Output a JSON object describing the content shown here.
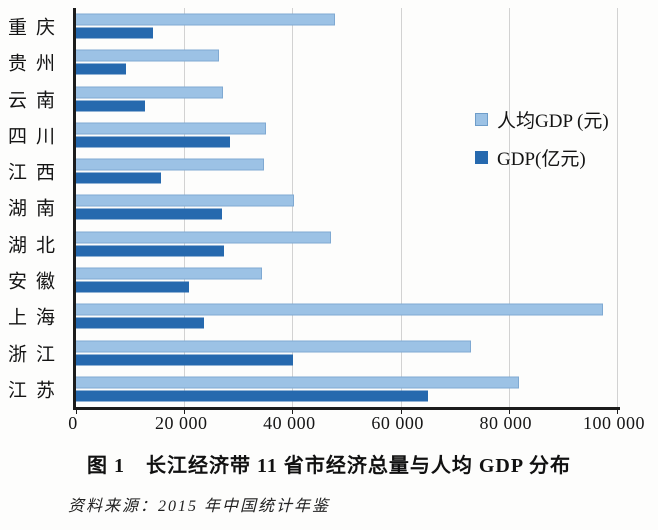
{
  "caption": {
    "title": "图 1　长江经济带 11 省市经济总量与人均 GDP 分布",
    "source": "资料来源：2015 年中国统计年鉴"
  },
  "chart_data": {
    "type": "bar",
    "orientation": "horizontal",
    "categories": [
      "重庆",
      "贵州",
      "云南",
      "四川",
      "江西",
      "湖南",
      "湖北",
      "安徽",
      "上海",
      "浙江",
      "江苏"
    ],
    "series": [
      {
        "name": "人均GDP (元)",
        "color": "#9cc2e5",
        "values": [
          47850,
          26437,
          27264,
          35128,
          34674,
          40271,
          47124,
          34425,
          97343,
          72967,
          81874
        ]
      },
      {
        "name": "GDP(亿元)",
        "color": "#2669ae",
        "values": [
          14265,
          9251,
          12815,
          28537,
          15709,
          27037,
          27367,
          20849,
          23568,
          40154,
          65088
        ]
      }
    ],
    "xlim": [
      0,
      100000
    ],
    "xticks": [
      {
        "value": 0,
        "label": "0"
      },
      {
        "value": 20000,
        "label": "20 000"
      },
      {
        "value": 40000,
        "label": "40 000"
      },
      {
        "value": 60000,
        "label": "60 000"
      },
      {
        "value": 80000,
        "label": "80 000"
      },
      {
        "value": 100000,
        "label": "100 000"
      }
    ],
    "grid": "vertical-on",
    "legend_position": "inside-upper-right",
    "title": "图 1　长江经济带 11 省市经济总量与人均 GDP 分布",
    "xlabel": "",
    "ylabel": ""
  }
}
